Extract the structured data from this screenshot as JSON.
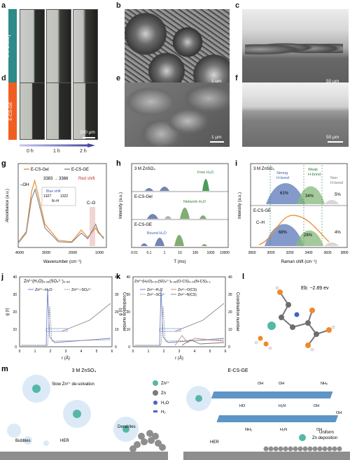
{
  "panels": {
    "a": {
      "label": "a",
      "side_tag": "3 M ZnSO",
      "side_tag_sub": "4"
    },
    "b": {
      "label": "b",
      "scale": "1 μm"
    },
    "c": {
      "label": "c",
      "scale": "50 μm"
    },
    "d": {
      "label": "d",
      "side_tag": "E-CS-GE",
      "scale": "200 μm"
    },
    "e": {
      "label": "e",
      "scale": "1 μm"
    },
    "f": {
      "label": "f",
      "scale": "50 μm"
    },
    "time_axis": [
      "0 h",
      "1 h",
      "2 h"
    ]
  },
  "g": {
    "label": "g",
    "legend": [
      "E-CS-Gel",
      "E-CS-GE"
    ],
    "oh": "–OH",
    "shift1": "3383",
    "arrow": "→",
    "shift2": "3366",
    "red_shift": "Red shift",
    "blue_shift": "Blue shift",
    "inset_a": "1327",
    "inset_b": "1322",
    "nh": "N–H",
    "co": "C–O",
    "ylabel": "Absorbance (a.u.)",
    "xlabel": "Wavenumber (cm⁻¹)",
    "ticks": [
      "4000",
      "3000",
      "2000",
      "1000"
    ]
  },
  "h": {
    "label": "h",
    "rows": [
      "3 M ZnSO₄",
      "E-CS-Gel",
      "E-CS-GE"
    ],
    "free": "Free H₂O",
    "network": "Network H₂O",
    "bound": "Bound H₂O",
    "ylabel": "Intensity (a.u.)",
    "xlabel": "T (ms)",
    "ticks": [
      "0.01",
      "0.1",
      "1",
      "10",
      "100",
      "1000",
      "10000"
    ]
  },
  "i": {
    "label": "i",
    "top": "3 M ZnSO₄",
    "bottom": "E-CS-GE",
    "strong": [
      "Strong",
      "H-bond"
    ],
    "weak": [
      "Weak",
      "H-bond"
    ],
    "non": [
      "Non",
      "H-bond"
    ],
    "top_pcts": [
      "61%",
      "34%",
      "5%"
    ],
    "bottom_pcts": [
      "68%",
      "28%",
      "4%"
    ],
    "ch": "C–H",
    "ylabel": "Intensity (a.u.)",
    "xlabel": "Raman shift (cm⁻¹)",
    "ticks": [
      "2800",
      "3000",
      "3200",
      "3400",
      "3600",
      "3800"
    ]
  },
  "j": {
    "label": "j",
    "title": "Zn²⁺(H₂O)₅.₃₈(SO₄²⁻)₀.₈₈",
    "legend": [
      "Zn²⁺–H₂O",
      "Zn²⁺–SO₄²⁻"
    ],
    "ylabel": "g (r)",
    "y2label": "Coordination number",
    "xlabel": "r (Å)",
    "xticks": [
      "0",
      "1",
      "2",
      "3",
      "4",
      "5",
      "6"
    ],
    "yticks": [
      "0",
      "10",
      "20",
      "30",
      "40"
    ],
    "y2ticks": [
      "0",
      "10",
      "20",
      "30",
      "40"
    ]
  },
  "k": {
    "label": "k",
    "title": "Zn²⁺(H₂O)₄.₅₀(SO₄²⁻)₀.₈₈(O-CS)₀.₂₃(N-CS)₀.₁",
    "legend": [
      "Zn²⁺–H₂O",
      "Zn²⁺–SO₄²⁻",
      "Zn²⁺–O(CS)",
      "Zn²⁺–N(CS)"
    ],
    "ylabel": "g (r)",
    "y2label": "Coordination number",
    "xlabel": "r (Å)",
    "xticks": [
      "0",
      "1",
      "2",
      "3",
      "4",
      "5",
      "6"
    ],
    "yticks": [
      "0",
      "10",
      "20",
      "30",
      "40"
    ],
    "y2ticks": [
      "0",
      "10",
      "20",
      "30",
      "40"
    ]
  },
  "l": {
    "label": "l",
    "eb": "Eb: −2.89 ev"
  },
  "m": {
    "label": "m",
    "left_title": "3 M ZnSO₄",
    "slow": "Slow Zn²⁺ de-solvation",
    "bubbles": "Bubbles",
    "her": "HER",
    "dendrites": "Dendrites",
    "legend": [
      "Zn²⁺",
      "Zn",
      "H₂O",
      "H₂"
    ],
    "right_title": "E-CS-GE",
    "uniform": [
      "Uniform",
      "Zn deposition"
    ],
    "her_r": "HER",
    "chem": [
      "OH",
      "OH",
      "NH₂",
      "HO",
      "H₂N",
      "OH",
      "NH₂",
      "H₂N",
      "OH",
      "OH"
    ]
  },
  "chart_data": [
    {
      "type": "line",
      "panel": "g",
      "xlabel": "Wavenumber (cm⁻¹)",
      "ylabel": "Absorbance (a.u.)",
      "xlim": [
        4000,
        700
      ],
      "series": [
        {
          "name": "E-CS-Gel",
          "x": [
            4000,
            3700,
            3500,
            3383,
            3250,
            3000,
            2500,
            2000,
            1640,
            1400,
            1100,
            1000,
            800
          ],
          "y": [
            0.05,
            0.2,
            0.75,
            0.9,
            0.7,
            0.3,
            0.08,
            0.06,
            0.22,
            0.12,
            0.25,
            0.18,
            0.12
          ]
        },
        {
          "name": "E-CS-GE",
          "x": [
            4000,
            3700,
            3500,
            3366,
            3250,
            3000,
            2500,
            2000,
            1640,
            1400,
            1100,
            1000,
            800
          ],
          "y": [
            0.04,
            0.18,
            0.65,
            0.78,
            0.62,
            0.25,
            0.06,
            0.05,
            0.18,
            0.1,
            0.3,
            0.2,
            0.1
          ]
        }
      ]
    },
    {
      "type": "area",
      "panel": "h",
      "xlabel": "T (ms)",
      "ylabel": "Intensity (a.u.)",
      "xscale": "log",
      "xlim": [
        0.01,
        10000
      ]
    },
    {
      "type": "area",
      "panel": "i",
      "xlabel": "Raman shift (cm⁻¹)",
      "ylabel": "Intensity (a.u.)",
      "xlim": [
        2800,
        3800
      ],
      "series": [
        {
          "name": "3 M ZnSO₄",
          "values": [
            61,
            34,
            5
          ]
        },
        {
          "name": "E-CS-GE",
          "values": [
            68,
            28,
            4
          ]
        }
      ],
      "categories": [
        "Strong H-bond",
        "Weak H-bond",
        "Non H-bond"
      ]
    },
    {
      "type": "line",
      "panel": "j",
      "xlabel": "r (Å)",
      "ylabel": "g (r)",
      "xlim": [
        0,
        6
      ],
      "ylim": [
        0,
        40
      ]
    },
    {
      "type": "line",
      "panel": "k",
      "xlabel": "r (Å)",
      "ylabel": "g (r)",
      "xlim": [
        0,
        6
      ],
      "ylim": [
        0,
        40
      ]
    }
  ]
}
